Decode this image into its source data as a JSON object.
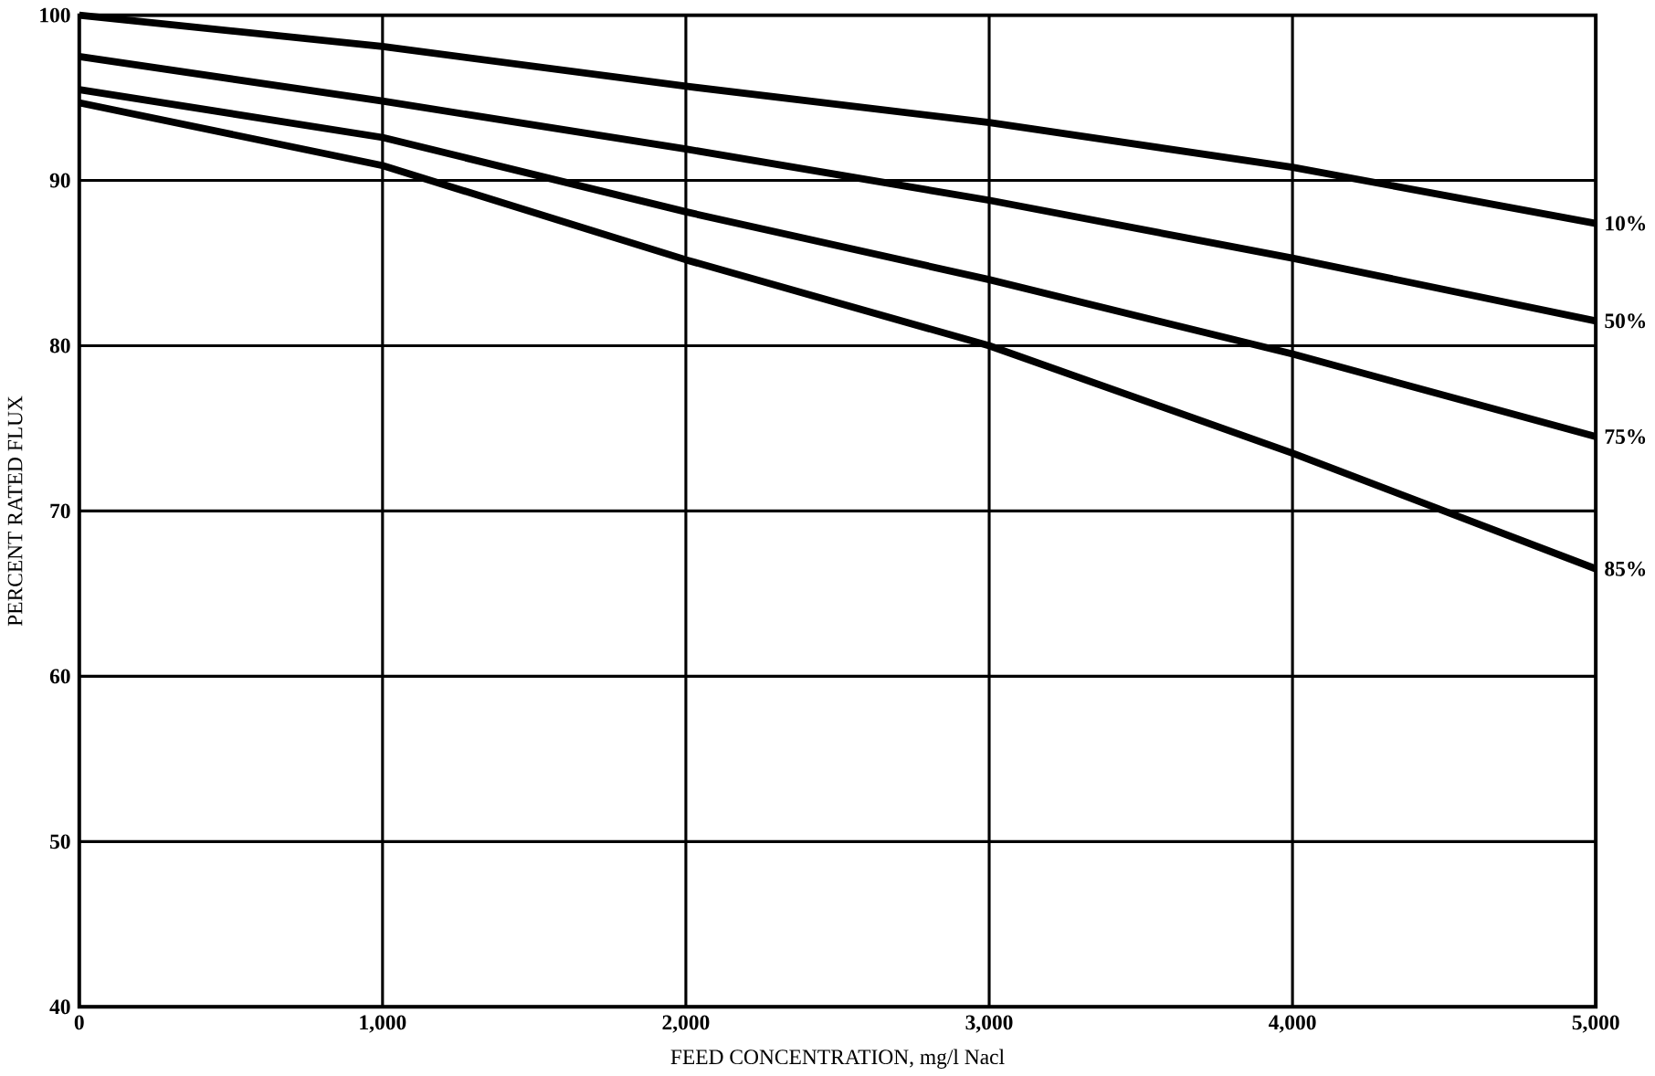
{
  "chart_data": {
    "type": "line",
    "xlabel": "FEED CONCENTRATION, mg/l Nacl",
    "ylabel": "PERCENT RATED FLUX",
    "x": [
      0,
      1000,
      2000,
      3000,
      4000,
      5000
    ],
    "series": [
      {
        "name": "10%",
        "color": "#000000",
        "values": [
          100,
          98.1,
          95.7,
          93.5,
          90.8,
          87.4
        ]
      },
      {
        "name": "50%",
        "color": "#000000",
        "values": [
          97.5,
          94.8,
          91.9,
          88.8,
          85.3,
          81.5
        ]
      },
      {
        "name": "75%",
        "color": "#000000",
        "values": [
          95.5,
          92.6,
          88.1,
          84,
          79.5,
          74.5
        ]
      },
      {
        "name": "85%",
        "color": "#000000",
        "values": [
          94.7,
          90.9,
          85.2,
          80,
          73.5,
          66.5
        ]
      }
    ],
    "xlim": [
      0,
      5000
    ],
    "ylim": [
      40,
      100
    ],
    "xticks": [
      0,
      {
        "value": 1000,
        "label": "1,000"
      },
      {
        "value": 2000,
        "label": "2,000"
      },
      {
        "value": 3000,
        "label": "3,000"
      },
      {
        "value": 4000,
        "label": "4,000"
      },
      {
        "value": 5000,
        "label": "5,000"
      }
    ],
    "yticks": [
      40,
      50,
      60,
      70,
      80,
      90,
      100
    ],
    "grid": true,
    "line_style": "solid",
    "marker": "none"
  }
}
